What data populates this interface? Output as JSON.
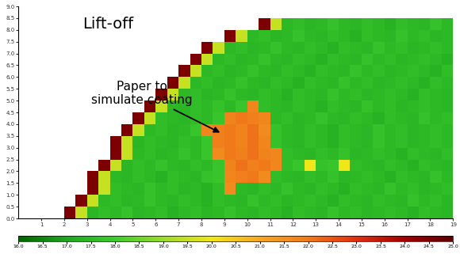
{
  "chart_data": {
    "type": "heatmap",
    "annotations": [
      {
        "text": "Lift-off"
      },
      {
        "text": "Paper to\nsimulate coating"
      }
    ],
    "xlim": [
      0,
      19
    ],
    "xticks": [
      1,
      2,
      3,
      4,
      5,
      6,
      7,
      8,
      9,
      10,
      11,
      12,
      13,
      14,
      15,
      16,
      17,
      18,
      19
    ],
    "ylim": [
      0,
      9
    ],
    "yticks": [
      {
        "value": 0,
        "label": "0.0"
      },
      0.5,
      {
        "value": 1,
        "label": "1.0"
      },
      1.5,
      {
        "value": 2,
        "label": "2.0"
      },
      2.5,
      {
        "value": 3,
        "label": "3.0"
      },
      3.5,
      {
        "value": 4,
        "label": "4.0"
      },
      4.5,
      {
        "value": 5,
        "label": "5.0"
      },
      5.5,
      {
        "value": 6,
        "label": "6.0"
      },
      6.5,
      {
        "value": 7,
        "label": "7.0"
      },
      7.5,
      {
        "value": 8,
        "label": "8.0"
      },
      8.5,
      {
        "value": 9,
        "label": "9.0"
      }
    ],
    "colorbar_range": [
      16,
      25
    ],
    "colorbar_ticks": [
      {
        "value": 16,
        "label": "16.0"
      },
      16.5,
      {
        "value": 17,
        "label": "17.0"
      },
      17.5,
      {
        "value": 18,
        "label": "18.0"
      },
      18.5,
      {
        "value": 19,
        "label": "19.0"
      },
      19.5,
      {
        "value": 20,
        "label": "20.0"
      },
      20.5,
      {
        "value": 21,
        "label": "21.0"
      },
      21.5,
      {
        "value": 22,
        "label": "22.0"
      },
      22.5,
      {
        "value": 23,
        "label": "23.0"
      },
      23.5,
      {
        "value": 24,
        "label": "24.0"
      },
      24.5,
      {
        "value": 25,
        "label": "25.0"
      }
    ],
    "cell_x_edges": [
      0,
      0.5,
      1,
      1.5,
      2,
      2.5,
      3,
      3.5,
      4,
      4.5,
      5,
      5.5,
      6,
      6.5,
      7,
      7.5,
      8,
      8.5,
      9,
      9.5,
      10,
      10.5,
      11,
      11.5,
      12,
      12.5,
      13,
      13.5,
      14,
      14.5,
      15,
      15.5,
      16,
      16.5,
      17,
      17.5,
      18,
      18.5,
      19
    ],
    "cell_y_edges": [
      0,
      0.5,
      1,
      1.5,
      2,
      2.5,
      3,
      3.5,
      4,
      4.5,
      5,
      5.5,
      6,
      6.5,
      7,
      7.5,
      8,
      8.5
    ],
    "cells": [
      [
        null,
        null,
        null,
        null,
        24.5,
        19.5,
        17.4,
        17.6,
        17.5,
        17.7,
        17.4,
        17.5,
        17.6,
        17.3,
        17.5,
        17.6,
        17.4,
        17.5,
        17.7,
        17.5,
        17.4,
        17.6,
        17.5,
        17.3,
        17.6,
        17.5,
        17.4,
        17.7,
        17.5,
        17.6,
        17.4,
        17.5,
        17.6,
        17.5,
        17.3,
        17.6,
        17.5,
        17.4
      ],
      [
        null,
        null,
        null,
        null,
        null,
        24.5,
        19.5,
        17.5,
        17.6,
        17.4,
        17.5,
        17.7,
        17.5,
        17.4,
        17.6,
        17.5,
        17.3,
        17.6,
        17.5,
        17.4,
        17.7,
        17.5,
        17.6,
        17.4,
        17.5,
        17.6,
        17.5,
        17.3,
        17.6,
        17.5,
        17.4,
        17.6,
        17.5,
        17.4,
        17.7,
        17.5,
        17.6,
        17.4
      ],
      [
        null,
        null,
        null,
        null,
        null,
        null,
        24.5,
        19.5,
        17.6,
        17.5,
        17.4,
        17.7,
        17.5,
        17.6,
        17.4,
        17.5,
        17.3,
        17.6,
        21.6,
        17.5,
        17.4,
        17.6,
        17.5,
        17.7,
        17.5,
        17.4,
        17.6,
        17.5,
        17.3,
        17.6,
        17.5,
        17.4,
        17.7,
        17.5,
        17.6,
        17.4,
        17.5,
        17.6
      ],
      [
        null,
        null,
        null,
        null,
        null,
        null,
        24.5,
        19.5,
        17.5,
        17.4,
        17.6,
        17.5,
        17.3,
        17.6,
        17.5,
        17.4,
        17.7,
        17.8,
        21.7,
        21.9,
        22.0,
        21.6,
        17.6,
        17.5,
        17.4,
        17.6,
        17.5,
        17.7,
        17.4,
        17.5,
        17.6,
        17.5,
        17.3,
        17.6,
        17.5,
        17.4,
        17.7,
        17.5
      ],
      [
        null,
        null,
        null,
        null,
        null,
        null,
        null,
        24.5,
        19.5,
        17.4,
        17.6,
        17.5,
        17.7,
        17.5,
        17.4,
        17.6,
        17.5,
        17.8,
        21.8,
        22.1,
        21.9,
        22.0,
        21.7,
        17.6,
        17.8,
        20.0,
        17.7,
        17.8,
        20.0,
        17.6,
        17.5,
        17.4,
        17.6,
        17.5,
        17.3,
        17.6,
        17.5,
        17.4
      ],
      [
        null,
        null,
        null,
        null,
        null,
        null,
        null,
        null,
        24.5,
        19.5,
        17.5,
        17.6,
        17.4,
        17.5,
        17.7,
        17.5,
        17.8,
        21.6,
        22.0,
        21.9,
        22.1,
        21.8,
        21.7,
        17.6,
        17.5,
        17.4,
        17.6,
        17.5,
        17.7,
        17.4,
        17.5,
        17.6,
        17.5,
        17.3,
        17.6,
        17.5,
        17.4,
        17.6
      ],
      [
        null,
        null,
        null,
        null,
        null,
        null,
        null,
        null,
        24.5,
        19.5,
        17.4,
        17.6,
        17.5,
        17.4,
        17.6,
        17.5,
        17.8,
        21.9,
        22.0,
        21.8,
        22.1,
        21.7,
        17.7,
        17.5,
        17.4,
        17.6,
        17.5,
        17.3,
        17.6,
        17.5,
        17.4,
        17.7,
        17.5,
        17.6,
        17.4,
        17.5,
        17.6,
        17.5
      ],
      [
        null,
        null,
        null,
        null,
        null,
        null,
        null,
        null,
        null,
        24.5,
        19.5,
        17.5,
        17.6,
        17.4,
        17.5,
        17.8,
        21.7,
        21.9,
        22.0,
        21.8,
        22.1,
        21.6,
        17.7,
        17.5,
        17.4,
        17.6,
        17.5,
        17.3,
        17.6,
        17.5,
        17.4,
        17.7,
        17.5,
        17.6,
        17.4,
        17.5,
        17.6,
        17.5
      ],
      [
        null,
        null,
        null,
        null,
        null,
        null,
        null,
        null,
        null,
        null,
        24.5,
        19.5,
        17.6,
        17.5,
        17.4,
        17.6,
        17.5,
        17.8,
        21.8,
        22.0,
        21.9,
        21.7,
        17.5,
        17.6,
        17.4,
        17.5,
        17.7,
        17.5,
        17.4,
        17.6,
        17.5,
        17.3,
        17.6,
        17.5,
        17.4,
        17.7,
        17.5,
        17.6
      ],
      [
        null,
        null,
        null,
        null,
        null,
        null,
        null,
        null,
        null,
        null,
        null,
        24.5,
        19.5,
        17.5,
        17.4,
        17.6,
        17.5,
        17.7,
        17.5,
        17.8,
        21.7,
        17.6,
        17.5,
        17.4,
        17.6,
        17.5,
        17.3,
        17.6,
        17.5,
        17.4,
        17.7,
        17.5,
        17.6,
        17.4,
        17.5,
        17.6,
        17.5,
        17.4
      ],
      [
        null,
        null,
        null,
        null,
        null,
        null,
        null,
        null,
        null,
        null,
        null,
        null,
        24.5,
        19.5,
        17.5,
        17.6,
        17.4,
        17.5,
        17.7,
        17.5,
        17.4,
        17.6,
        17.5,
        17.3,
        17.6,
        17.5,
        17.4,
        17.7,
        17.5,
        17.6,
        17.4,
        17.5,
        17.6,
        17.5,
        17.3,
        17.6,
        17.5,
        17.4
      ],
      [
        null,
        null,
        null,
        null,
        null,
        null,
        null,
        null,
        null,
        null,
        null,
        null,
        null,
        24.5,
        19.5,
        17.5,
        17.6,
        17.4,
        17.5,
        17.7,
        17.5,
        17.4,
        17.6,
        17.5,
        17.3,
        17.6,
        17.5,
        17.4,
        17.7,
        17.5,
        17.6,
        17.4,
        17.5,
        17.6,
        17.5,
        17.3,
        17.6,
        17.5
      ],
      [
        null,
        null,
        null,
        null,
        null,
        null,
        null,
        null,
        null,
        null,
        null,
        null,
        null,
        null,
        24.5,
        19.5,
        17.5,
        17.6,
        17.4,
        17.5,
        17.7,
        17.5,
        17.4,
        17.6,
        17.5,
        17.3,
        17.6,
        17.5,
        17.4,
        17.7,
        17.5,
        17.6,
        17.4,
        17.5,
        17.6,
        17.5,
        17.3,
        17.6
      ],
      [
        null,
        null,
        null,
        null,
        null,
        null,
        null,
        null,
        null,
        null,
        null,
        null,
        null,
        null,
        null,
        24.5,
        19.5,
        17.5,
        17.6,
        17.4,
        17.5,
        17.7,
        17.5,
        17.4,
        17.6,
        17.5,
        17.3,
        17.6,
        17.5,
        17.4,
        17.7,
        17.5,
        17.6,
        17.4,
        17.5,
        17.6,
        17.5,
        17.3
      ],
      [
        null,
        null,
        null,
        null,
        null,
        null,
        null,
        null,
        null,
        null,
        null,
        null,
        null,
        null,
        null,
        null,
        24.5,
        19.5,
        17.5,
        17.6,
        17.4,
        17.5,
        17.7,
        17.5,
        17.4,
        17.6,
        17.5,
        17.3,
        17.6,
        17.5,
        17.4,
        17.7,
        17.5,
        17.6,
        17.4,
        17.5,
        17.6,
        17.5
      ],
      [
        null,
        null,
        null,
        null,
        null,
        null,
        null,
        null,
        null,
        null,
        null,
        null,
        null,
        null,
        null,
        null,
        null,
        null,
        24.5,
        19.5,
        17.5,
        17.6,
        17.4,
        17.5,
        17.7,
        17.5,
        17.4,
        17.6,
        17.5,
        17.3,
        17.6,
        17.5,
        17.4,
        17.7,
        17.5,
        17.6,
        17.4,
        17.5
      ],
      [
        null,
        null,
        null,
        null,
        null,
        null,
        null,
        null,
        null,
        null,
        null,
        null,
        null,
        null,
        null,
        null,
        null,
        null,
        null,
        null,
        null,
        24.5,
        19.5,
        17.5,
        17.6,
        17.4,
        17.5,
        17.7,
        17.5,
        17.4,
        17.6,
        17.5,
        17.3,
        17.6,
        17.5,
        17.4,
        17.7,
        17.5
      ]
    ]
  }
}
